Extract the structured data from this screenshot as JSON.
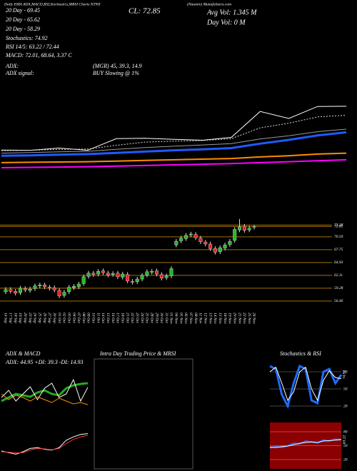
{
  "header": {
    "title": "Daily EMA ADX,MACD,RSI,Stochastics,MRSI Charts NTNX",
    "source": "(Nutanix) MunafaSutra.com",
    "info": [
      "20 Day - 69.45",
      "20 Day - 65.62",
      "20 Day - 58.29",
      "Stochastics: 74.92",
      "RSI 14/5: 63.22 / 72.44",
      "MACD: 72.01, 68.64, 3.37 C"
    ],
    "signals": [
      "ADX:",
      "(MGR) 45, 39.3, 14.9",
      "ADX signal:",
      "BUY Slowing @ 1%"
    ],
    "quote": [
      "CL: 72.85",
      "Avg Vol: 1.345 M",
      "Day Vol: 0 M"
    ]
  },
  "chart_data": [
    {
      "type": "line",
      "ylim": [
        50,
        76
      ],
      "series": [
        {
          "color": "#ffffff",
          "values": [
            59.0,
            58.9,
            59.6,
            58.9,
            62.6,
            62.7,
            62.4,
            62.1,
            63.0,
            71.2,
            69.0,
            72.8,
            72.85
          ]
        },
        {
          "color": "#dddddd",
          "dashed": true,
          "values": [
            58.8,
            58.9,
            59.2,
            59.3,
            60.5,
            61.5,
            61.8,
            62.0,
            62.6,
            66.0,
            67.5,
            69.5,
            70.0
          ]
        },
        {
          "color": "#999999",
          "values": [
            58.0,
            58.2,
            58.4,
            58.6,
            59.2,
            59.8,
            60.2,
            60.6,
            61.0,
            62.5,
            63.5,
            64.8,
            65.6
          ]
        },
        {
          "color": "#1e5bff",
          "width": 3,
          "values": [
            57.2,
            57.3,
            57.5,
            57.7,
            58.1,
            58.5,
            58.9,
            59.2,
            59.6,
            61.0,
            62.2,
            63.6,
            64.6
          ]
        },
        {
          "color": "#ff8c00",
          "width": 2,
          "values": [
            55.0,
            55.1,
            55.2,
            55.3,
            55.5,
            55.7,
            55.9,
            56.1,
            56.3,
            56.8,
            57.2,
            57.7,
            58.0
          ]
        },
        {
          "color": "#ff00ff",
          "width": 2,
          "values": [
            53.4,
            53.5,
            53.6,
            53.7,
            53.9,
            54.1,
            54.3,
            54.5,
            54.7,
            55.0,
            55.3,
            55.6,
            55.9
          ]
        }
      ]
    },
    {
      "type": "candlestick",
      "ylim": [
        55.5,
        74.8
      ],
      "grid": true,
      "grid_color": "#a0700a",
      "up_color": "#22bb22",
      "down_color": "#ee2222",
      "yticks": [
        73.18,
        72.85,
        70.59,
        67.75,
        64.93,
        62.11,
        59.28,
        56.46
      ],
      "categories": [
        "16 Sep",
        "17 Sep",
        "18 Sep",
        "19 Sep",
        "20 Sep",
        "23 Sep",
        "24 Sep",
        "25 Sep",
        "26 Sep",
        "27 Sep",
        "30 Sep",
        "01 Oct",
        "02 Oct",
        "03 Oct",
        "04 Oct",
        "07 Oct",
        "08 Oct",
        "09 Oct",
        "10 Oct",
        "11 Oct",
        "14 Oct",
        "15 Oct",
        "16 Oct",
        "17 Oct",
        "18 Oct",
        "21 Oct",
        "22 Oct",
        "23 Oct",
        "24 Oct",
        "25 Oct",
        "28 Oct",
        "29 Oct",
        "30 Oct",
        "31 Oct",
        "01 Nov",
        "04 Nov",
        "05 Nov",
        "06 Nov",
        "07 Nov",
        "08 Nov",
        "11 Nov",
        "12 Nov",
        "13 Nov",
        "14 Nov",
        "15 Nov",
        "18 Nov",
        "19 Nov",
        "20 Nov",
        "21 Nov",
        "22 Nov",
        "25 Nov",
        "26 Nov"
      ],
      "open": [
        58.5,
        59.0,
        58.6,
        58.3,
        59.2,
        58.8,
        59.2,
        59.8,
        60.0,
        59.5,
        59.4,
        58.8,
        57.7,
        58.5,
        59.4,
        59.6,
        60.3,
        61.9,
        62.6,
        62.4,
        63.1,
        62.6,
        62.3,
        62.6,
        61.7,
        62.3,
        60.8,
        60.7,
        61.3,
        62.2,
        62.8,
        63.1,
        62.3,
        61.6,
        62.0,
        68.8,
        69.7,
        70.2,
        71.0,
        71.1,
        70.3,
        69.4,
        69.0,
        68.0,
        67.3,
        68.1,
        68.9,
        69.8,
        72.1,
        72.9,
        72.1,
        72.7
      ],
      "high": [
        59.5,
        59.5,
        59.1,
        59.8,
        59.7,
        59.6,
        60.3,
        60.5,
        60.5,
        60.0,
        59.9,
        59.3,
        58.9,
        60.0,
        60.2,
        60.7,
        62.3,
        63.1,
        63.1,
        63.5,
        63.6,
        63.1,
        63.0,
        63.1,
        62.9,
        62.8,
        61.3,
        61.8,
        62.6,
        63.4,
        63.5,
        63.6,
        62.8,
        62.5,
        64.1,
        70.1,
        70.8,
        71.4,
        71.7,
        71.6,
        70.8,
        69.9,
        69.5,
        68.5,
        68.7,
        69.3,
        70.1,
        72.7,
        74.5,
        73.4,
        73.0,
        73.2
      ],
      "low": [
        58.0,
        58.1,
        57.7,
        57.8,
        58.4,
        58.3,
        58.7,
        59.3,
        59.1,
        58.8,
        58.4,
        57.1,
        57.2,
        58.0,
        58.9,
        59.1,
        59.8,
        61.4,
        61.8,
        61.9,
        62.2,
        61.7,
        61.8,
        61.3,
        61.2,
        60.4,
        60.1,
        60.2,
        60.8,
        61.7,
        62.3,
        61.9,
        61.0,
        61.1,
        61.5,
        68.3,
        69.2,
        69.7,
        70.5,
        69.9,
        69.0,
        68.5,
        67.5,
        66.7,
        66.8,
        67.6,
        68.4,
        69.3,
        71.6,
        71.5,
        71.6,
        72.2
      ],
      "close": [
        59.0,
        58.6,
        58.2,
        59.3,
        58.9,
        59.1,
        59.8,
        60.0,
        59.6,
        59.3,
        58.9,
        57.6,
        58.4,
        59.5,
        59.7,
        60.2,
        61.8,
        62.6,
        62.3,
        63.0,
        62.7,
        62.2,
        62.5,
        61.8,
        62.4,
        60.9,
        60.6,
        61.3,
        62.1,
        62.9,
        63.0,
        62.4,
        61.5,
        62.0,
        63.6,
        69.6,
        70.3,
        70.9,
        71.2,
        70.4,
        69.5,
        69.0,
        68.0,
        67.2,
        68.2,
        68.8,
        69.6,
        72.2,
        72.8,
        72.0,
        72.5,
        72.85
      ]
    },
    {
      "type": "line",
      "title": "ADX & MACD",
      "subtitle": "ADX: 44.95 +DI: 39.3 -DI: 14.93",
      "ylim": [
        0,
        60
      ],
      "series": [
        {
          "color": "#22aa22",
          "width": 3,
          "values": [
            20,
            25,
            30,
            28,
            26,
            32,
            35,
            30,
            28,
            38,
            42,
            44,
            44.95
          ]
        },
        {
          "color": "#ffffff",
          "values": [
            25,
            35,
            20,
            30,
            40,
            22,
            38,
            45,
            25,
            30,
            50,
            20,
            39.3
          ]
        },
        {
          "color": "#ff8c00",
          "values": [
            30,
            22,
            28,
            25,
            20,
            26,
            22,
            18,
            24,
            20,
            16,
            18,
            14.93
          ]
        }
      ]
    },
    {
      "type": "line",
      "ylim": [
        -1.5,
        3
      ],
      "series": [
        {
          "color": "#ffffff",
          "values": [
            0.5,
            0.3,
            0.1,
            0.4,
            0.8,
            0.9,
            0.7,
            0.6,
            0.9,
            1.8,
            2.2,
            2.5,
            2.6
          ]
        },
        {
          "color": "#ff3333",
          "values": [
            0.4,
            0.35,
            0.25,
            0.3,
            0.6,
            0.8,
            0.75,
            0.65,
            0.8,
            1.4,
            1.9,
            2.2,
            2.4
          ]
        }
      ]
    },
    {
      "type": "panel",
      "title": "Intra Day Trading Price & MRSI",
      "border": "#555555"
    },
    {
      "type": "line",
      "title": "Stochastics & RSI",
      "ylim": [
        0,
        100
      ],
      "yticks": [
        20,
        50,
        80
      ],
      "grid": true,
      "grid_color": "#444444",
      "annotation": "74.92",
      "series": [
        {
          "color": "#1e6bff",
          "width": 3,
          "values": [
            90,
            85,
            40,
            20,
            60,
            90,
            85,
            30,
            25,
            80,
            85,
            60,
            74.92
          ]
        },
        {
          "color": "#ffffff",
          "values": [
            80,
            88,
            60,
            30,
            45,
            80,
            88,
            50,
            30,
            65,
            82,
            70,
            68
          ]
        }
      ]
    },
    {
      "type": "line",
      "background": "#8b0000",
      "ylim": [
        0,
        100
      ],
      "yticks": [
        20,
        50,
        80
      ],
      "grid": true,
      "grid_color": "#c04040",
      "annotation": "63.22",
      "series": [
        {
          "color": "#1e6bff",
          "width": 2,
          "values": [
            45,
            48,
            46,
            50,
            55,
            54,
            60,
            58,
            56,
            62,
            60,
            64,
            63.22
          ]
        },
        {
          "color": "#ffffff",
          "values": [
            47,
            46,
            48,
            49,
            52,
            55,
            57,
            58,
            57,
            60,
            61,
            62,
            63
          ]
        }
      ]
    }
  ]
}
